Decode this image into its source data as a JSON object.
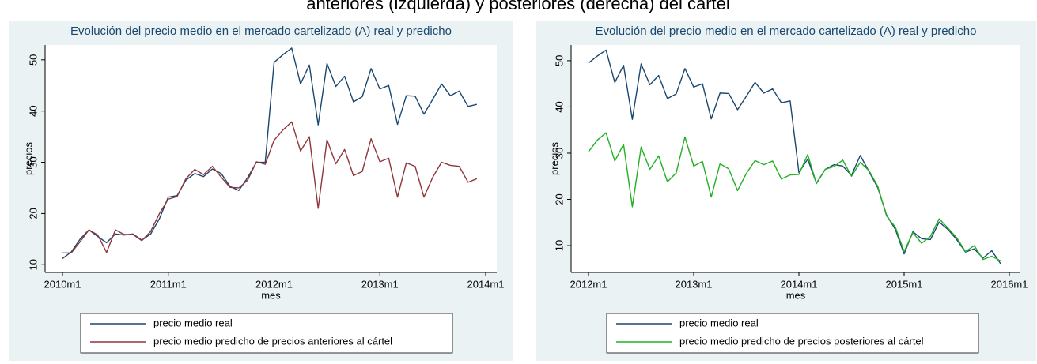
{
  "title": "anteriores (izquierda) y posteriores (derecha) del cártel",
  "chart_data": [
    {
      "type": "line",
      "title": "Evolución del precio medio en el mercado cartelizado (A) real y predicho",
      "xlabel": "mes",
      "ylabel": "precios",
      "x": [
        "2010m1",
        "2010m2",
        "2010m3",
        "2010m4",
        "2010m5",
        "2010m6",
        "2010m7",
        "2010m8",
        "2010m9",
        "2010m10",
        "2010m11",
        "2010m12",
        "2011m1",
        "2011m2",
        "2011m3",
        "2011m4",
        "2011m5",
        "2011m6",
        "2011m7",
        "2011m8",
        "2011m9",
        "2011m10",
        "2011m11",
        "2011m12",
        "2012m1",
        "2012m2",
        "2012m3",
        "2012m4",
        "2012m5",
        "2012m6",
        "2012m7",
        "2012m8",
        "2012m9",
        "2012m10",
        "2012m11",
        "2012m12",
        "2013m1",
        "2013m2",
        "2013m3",
        "2013m4",
        "2013m5",
        "2013m6",
        "2013m7",
        "2013m8",
        "2013m9",
        "2013m10",
        "2013m11",
        "2013m12"
      ],
      "xlim": [
        "2010m1",
        "2014m1"
      ],
      "xticks": [
        "2010m1",
        "2011m1",
        "2012m1",
        "2013m1",
        "2014m1"
      ],
      "ylim": [
        8.5,
        52.9
      ],
      "yticks": [
        10,
        20,
        30,
        40,
        50
      ],
      "grid": false,
      "legend": "bottom",
      "series": [
        {
          "name": "precio medio real",
          "color": "#1a476f",
          "values": [
            11.2,
            12.5,
            15,
            16.8,
            15.5,
            14.3,
            16,
            15.8,
            16,
            14.8,
            16,
            19,
            23.2,
            23.5,
            26.5,
            27.8,
            27.2,
            28.7,
            27.8,
            25.3,
            24.5,
            27,
            30,
            30,
            49.5,
            51,
            52.3,
            45.3,
            49,
            37.3,
            49.3,
            44.8,
            46.8,
            41.8,
            42.8,
            48.3,
            44.3,
            45,
            37.4,
            43,
            42.9,
            39.4,
            42.3,
            45.3,
            43,
            43.9,
            40.9,
            41.3
          ]
        },
        {
          "name": "precio medio predicho de precios anteriores al cártel",
          "color": "#90353b",
          "values": [
            12.3,
            12.3,
            14.5,
            16.8,
            15.8,
            12.4,
            16.8,
            15.9,
            15.9,
            14.7,
            16.5,
            20,
            22.8,
            23.3,
            26.8,
            28.6,
            27.6,
            29.2,
            27.1,
            25.1,
            25,
            26.5,
            30.1,
            29.6,
            34.3,
            36.3,
            37.9,
            32.2,
            35,
            21,
            34.4,
            29.7,
            32.5,
            27.4,
            28.2,
            34.6,
            30.1,
            30.8,
            23.2,
            29.9,
            29.2,
            23.2,
            27.1,
            30,
            29.4,
            29.2,
            26.1,
            26.8
          ]
        }
      ]
    },
    {
      "type": "line",
      "title": "Evolución del precio medio en el mercado cartelizado (A) real y predicho",
      "xlabel": "mes",
      "ylabel": "precios",
      "x": [
        "2012m1",
        "2012m2",
        "2012m3",
        "2012m4",
        "2012m5",
        "2012m6",
        "2012m7",
        "2012m8",
        "2012m9",
        "2012m10",
        "2012m11",
        "2012m12",
        "2013m1",
        "2013m2",
        "2013m3",
        "2013m4",
        "2013m5",
        "2013m6",
        "2013m7",
        "2013m8",
        "2013m9",
        "2013m10",
        "2013m11",
        "2013m12",
        "2014m1",
        "2014m2",
        "2014m3",
        "2014m4",
        "2014m5",
        "2014m6",
        "2014m7",
        "2014m8",
        "2014m9",
        "2014m10",
        "2014m11",
        "2014m12",
        "2015m1",
        "2015m2",
        "2015m3",
        "2015m4",
        "2015m5",
        "2015m6",
        "2015m7",
        "2015m8",
        "2015m9",
        "2015m10",
        "2015m11",
        "2015m12"
      ],
      "xlim": [
        "2012m1",
        "2016m1"
      ],
      "xticks": [
        "2012m1",
        "2013m1",
        "2014m1",
        "2015m1",
        "2016m1"
      ],
      "ylim": [
        4.2,
        53.4
      ],
      "yticks": [
        10,
        20,
        30,
        40,
        50
      ],
      "grid": false,
      "legend": "bottom",
      "series": [
        {
          "name": "precio medio real",
          "color": "#1a476f",
          "values": [
            49.5,
            51,
            52.3,
            45.3,
            49,
            37.3,
            49.3,
            44.8,
            46.8,
            41.8,
            42.8,
            48.3,
            44.3,
            45,
            37.4,
            43,
            42.9,
            39.4,
            42.3,
            45.3,
            43,
            43.9,
            40.9,
            41.3,
            25.8,
            28.7,
            23.5,
            26.5,
            27.5,
            27.2,
            25.2,
            29.5,
            26,
            22.5,
            16.6,
            13.5,
            8.2,
            13,
            11.5,
            11.3,
            15.1,
            13.5,
            11.3,
            8.6,
            9.3,
            7.3,
            8.9,
            6.1
          ]
        },
        {
          "name": "precio medio predicho de precios posteriores al cártel",
          "color": "#22b022",
          "values": [
            30.3,
            32.8,
            34.4,
            28.3,
            31.9,
            18.4,
            31.3,
            26.5,
            29.4,
            23.8,
            25.7,
            33.5,
            27.2,
            28.2,
            20.5,
            27.7,
            26.6,
            21.9,
            25.6,
            28.4,
            27.5,
            28.3,
            24.4,
            25.3,
            25.4,
            29.7,
            23.4,
            26.5,
            27.1,
            28.5,
            25,
            28,
            26.2,
            22.8,
            16.4,
            14,
            8.7,
            12.8,
            10.5,
            12,
            15.8,
            13.8,
            11.7,
            8.7,
            10,
            7,
            7.7,
            6.7
          ]
        }
      ]
    }
  ]
}
